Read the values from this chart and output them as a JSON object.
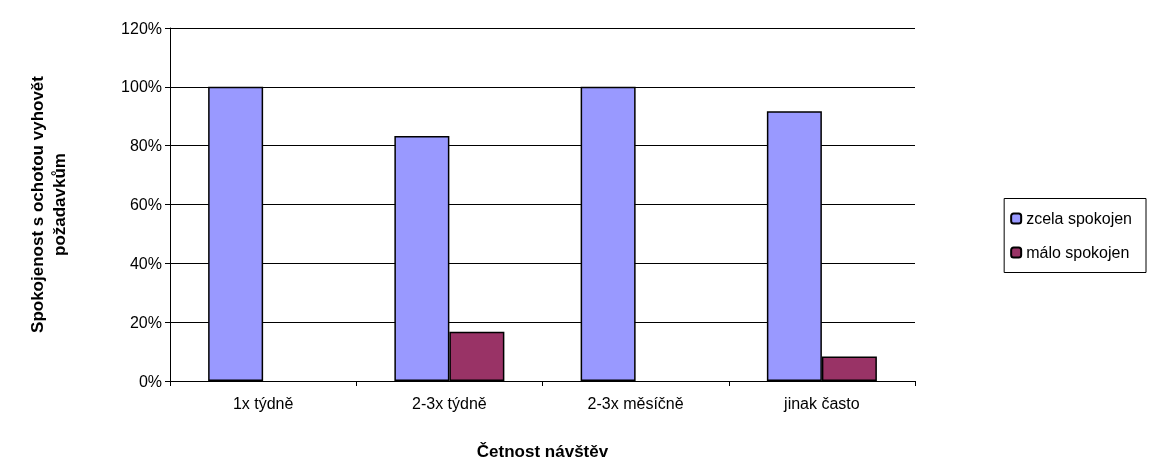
{
  "chart_data": {
    "type": "bar",
    "xlabel": "Četnost návštěv",
    "ylabel": "Spokojenost s ochotou vyhovět požadavkům",
    "categories": [
      "1x týdně",
      "2-3x týdně",
      "2-3x měsíčně",
      "jinak často"
    ],
    "series": [
      {
        "name": "zcela spokojen",
        "color": "#9999ff",
        "values": [
          100,
          83.3,
          100,
          91.7
        ]
      },
      {
        "name": "málo spokojen",
        "color": "#993366",
        "values": [
          0,
          16.7,
          0,
          8.3
        ]
      }
    ],
    "ylim": [
      0,
      120
    ],
    "yticks": [
      {
        "value": 0,
        "label": "0%"
      },
      {
        "value": 20,
        "label": "20%"
      },
      {
        "value": 40,
        "label": "40%"
      },
      {
        "value": 60,
        "label": "60%"
      },
      {
        "value": 80,
        "label": "80%"
      },
      {
        "value": 100,
        "label": "100%"
      },
      {
        "value": 120,
        "label": "120%"
      }
    ],
    "grid": "y",
    "legend": "right"
  }
}
